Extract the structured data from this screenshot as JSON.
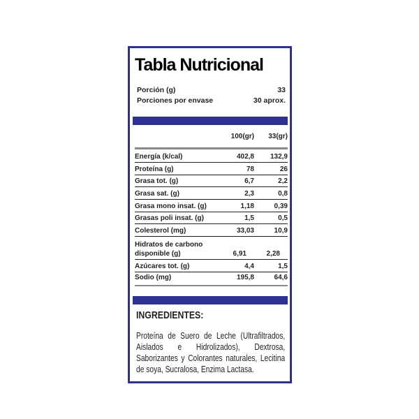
{
  "title": "Tabla Nutricional",
  "serving": {
    "portion_label": "Porción (g)",
    "portion_value": "33",
    "per_pack_label": "Porciones por envase",
    "per_pack_value": "30 aprox."
  },
  "columns": [
    "100(gr)",
    "33(gr)"
  ],
  "rows": [
    {
      "name": "Energía (k/cal)",
      "per100": "402,8",
      "perServing": "132,9"
    },
    {
      "name": "Proteína (g)",
      "per100": "78",
      "perServing": "26"
    },
    {
      "name": "Grasa tot. (g)",
      "per100": "6,7",
      "perServing": "2,2"
    },
    {
      "name": "Grasa sat. (g)",
      "per100": "2,3",
      "perServing": "0,8"
    },
    {
      "name": "Grasa mono insat. (g)",
      "per100": "1,18",
      "perServing": "0,39"
    },
    {
      "name": "Grasas poli insat. (g)",
      "per100": "1,5",
      "perServing": "0,5"
    },
    {
      "name": "Colesterol (mg)",
      "per100": "33,03",
      "perServing": "10,9"
    },
    {
      "name": "Hidratos de carbono disponible (g)",
      "per100": "6,91",
      "perServing": "2,28"
    },
    {
      "name": "Azúcares tot. (g)",
      "per100": "4,4",
      "perServing": "1,5"
    },
    {
      "name": "Sodio (mg)",
      "per100": "195,8",
      "perServing": "64,6"
    }
  ],
  "ingredients": {
    "heading": "INGREDIENTES:",
    "text": "Proteína de Suero de Leche (Ultrafiltrados, Aislados e Hidrolizados), Dextrosa, Saborizantes y Colorantes naturales, Lecitina de soya, Sucralosa, Enzima Lactasa."
  },
  "colors": {
    "border": "#2e3192",
    "bar": "#2e3192",
    "text": "#231f20"
  }
}
